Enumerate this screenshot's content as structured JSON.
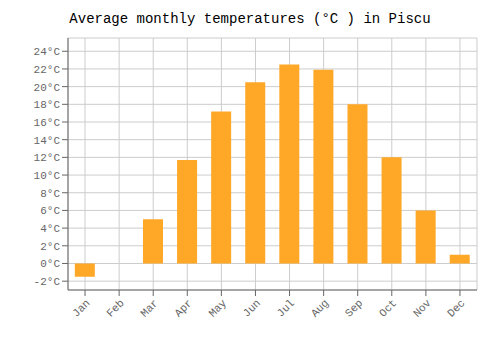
{
  "chart_data": {
    "type": "bar",
    "title": "Average monthly temperatures (°C ) in Piscu",
    "categories": [
      "Jan",
      "Feb",
      "Mar",
      "Apr",
      "May",
      "Jun",
      "Jul",
      "Aug",
      "Sep",
      "Oct",
      "Nov",
      "Dec"
    ],
    "values": [
      -1.5,
      0.0,
      5.0,
      11.7,
      17.2,
      20.5,
      22.5,
      21.9,
      18.0,
      12.0,
      6.0,
      1.0
    ],
    "color": "#FFA726",
    "ylim": [
      -3,
      25.5
    ],
    "yticks": [
      {
        "value": -2,
        "label": "-2°C"
      },
      {
        "value": 0,
        "label": "0°C"
      },
      {
        "value": 2,
        "label": "2°C"
      },
      {
        "value": 4,
        "label": "4°C"
      },
      {
        "value": 6,
        "label": "6°C"
      },
      {
        "value": 8,
        "label": "8°C"
      },
      {
        "value": 10,
        "label": "10°C"
      },
      {
        "value": 12,
        "label": "12°C"
      },
      {
        "value": 14,
        "label": "14°C"
      },
      {
        "value": 16,
        "label": "16°C"
      },
      {
        "value": 18,
        "label": "18°C"
      },
      {
        "value": 20,
        "label": "20°C"
      },
      {
        "value": 22,
        "label": "22°C"
      },
      {
        "value": 24,
        "label": "24°C"
      }
    ],
    "grid": true
  }
}
